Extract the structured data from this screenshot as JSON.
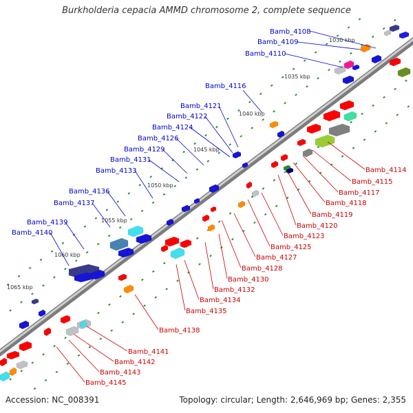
{
  "header": {
    "title": "Burkholderia cepacia AMMD chromosome 2, complete sequence"
  },
  "footer": {
    "accession": "Accession: NC_008391",
    "summary": "Topology: circular; Length: 2,646,969 bp; Genes: 2,355"
  },
  "kbp_labels": [
    "1030 kbp",
    "1035 kbp",
    "1040 kbp",
    "1045 kbp",
    "1050 kbp",
    "1055 kbp",
    "1060 kbp",
    "1065 kbp"
  ],
  "forward_genes": [
    "Bamb_4108",
    "Bamb_4109",
    "Bamb_4110",
    "Bamb_4116",
    "Bamb_4121",
    "Bamb_4122",
    "Bamb_4124",
    "Bamb_4126",
    "Bamb_4129",
    "Bamb_4131",
    "Bamb_4133",
    "Bamb_4136",
    "Bamb_4137",
    "Bamb_4139",
    "Bamb_4140"
  ],
  "reverse_genes": [
    "Bamb_4114",
    "Bamb_4115",
    "Bamb_4117",
    "Bamb_4118",
    "Bamb_4119",
    "Bamb_4120",
    "Bamb_4123",
    "Bamb_4125",
    "Bamb_4127",
    "Bamb_4128",
    "Bamb_4130",
    "Bamb_4132",
    "Bamb_4134",
    "Bamb_4135",
    "Bamb_4138",
    "Bamb_4141",
    "Bamb_4142",
    "Bamb_4143",
    "Bamb_4145"
  ],
  "colors": {
    "backbone": "#8a8a8a",
    "forward_label": "#0000cc",
    "reverse_label": "#cc0000",
    "tick": "#2e8b2e"
  }
}
